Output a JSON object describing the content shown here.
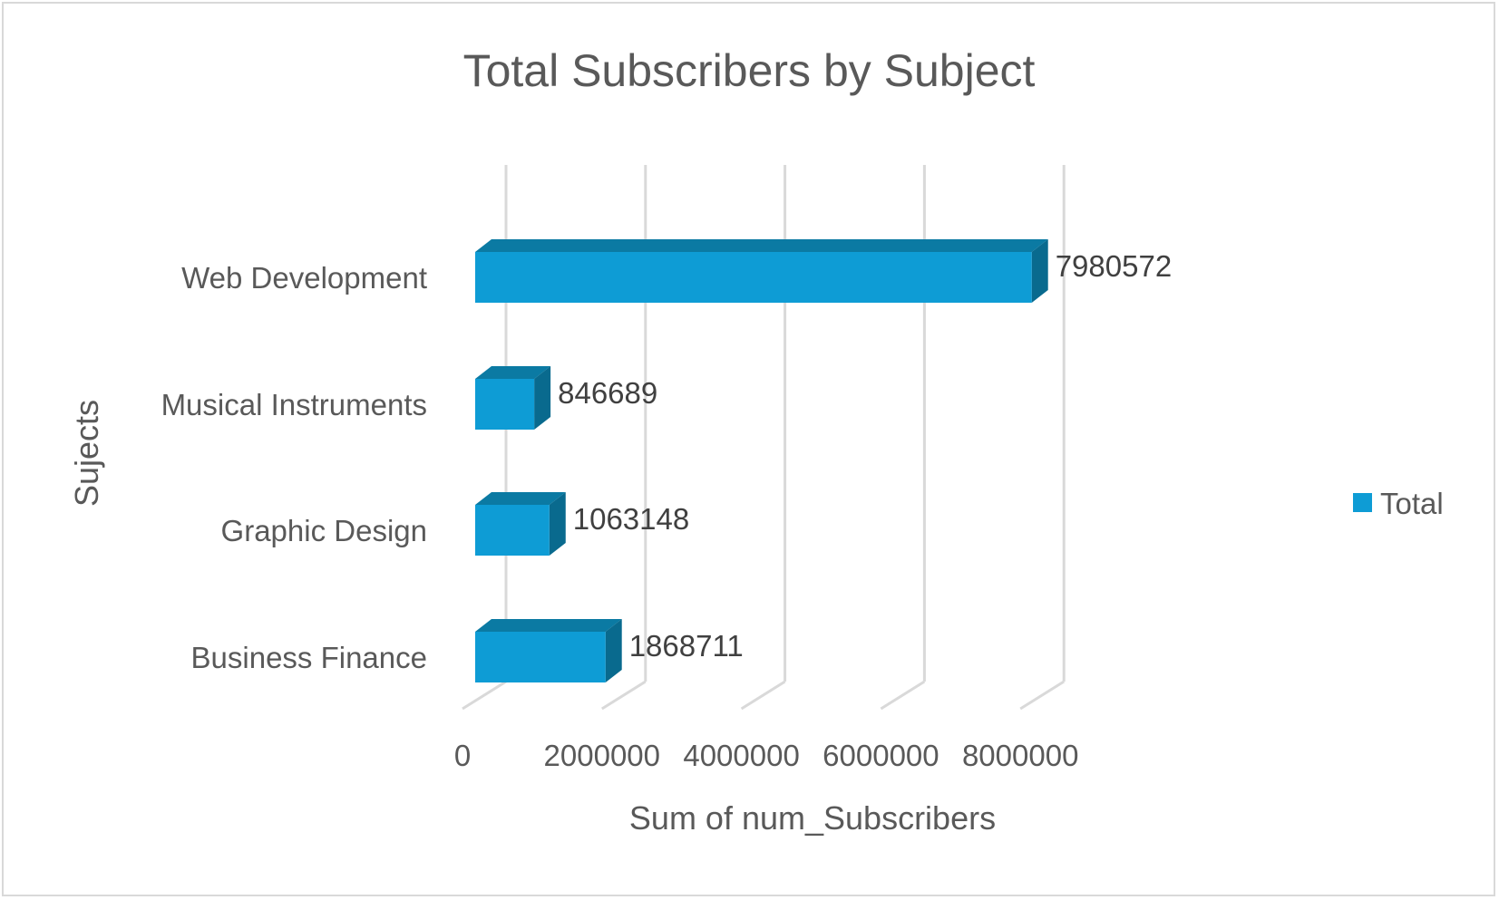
{
  "chart_data": {
    "type": "bar",
    "orientation": "horizontal",
    "style": "3d-clustered",
    "title": "Total Subscribers by Subject",
    "xlabel": "Sum of num_Subscribers",
    "ylabel": "Sujects",
    "categories": [
      "Business Finance",
      "Graphic Design",
      "Musical Instruments",
      "Web Development"
    ],
    "series": [
      {
        "name": "Total",
        "values": [
          1868711,
          1063148,
          846689,
          7980572
        ],
        "color": "#0e9cd5"
      }
    ],
    "xlim": [
      0,
      8000000
    ],
    "xticks": [
      "0",
      "2000000",
      "4000000",
      "6000000",
      "8000000"
    ],
    "grid": true,
    "legend": "right"
  }
}
